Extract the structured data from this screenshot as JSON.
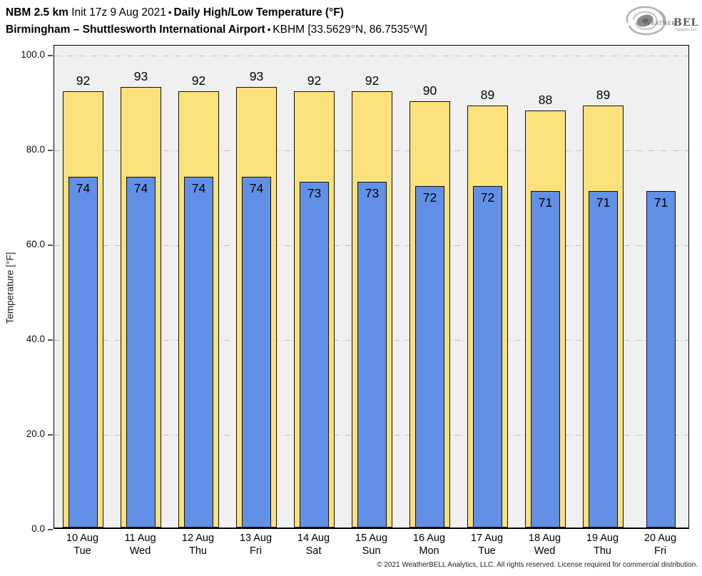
{
  "header": {
    "model": "NBM 2.5 km",
    "init": "Init 17z 9 Aug 2021",
    "sep": "•",
    "product": "Daily High/Low Temperature (°F)",
    "location": "Birmingham – Shuttlesworth International Airport",
    "station": "KBHM [33.5629°N, 86.7535°W]"
  },
  "logo": {
    "name": "WeatherBELL",
    "text_weather": "Weather",
    "text_bell": "BELL",
    "text_sub": "Analytics LLC"
  },
  "footer": {
    "copyright": "© 2021 WeatherBELL Analytics, LLC. All rights reserved. License required for commercial distribution."
  },
  "chart_data": {
    "type": "bar",
    "title": "NBM 2.5 km Init 17z 9 Aug 2021 • Daily High/Low Temperature (°F)",
    "subtitle": "Birmingham – Shuttlesworth International Airport • KBHM [33.5629°N, 86.7535°W]",
    "xlabel": "",
    "ylabel": "Temperature [°F]",
    "ylim": [
      0,
      100
    ],
    "yticks": [
      {
        "value": 0,
        "label": "0.0"
      },
      {
        "value": 20,
        "label": "20.0"
      },
      {
        "value": 40,
        "label": "40.0"
      },
      {
        "value": 60,
        "label": "60.0"
      },
      {
        "value": 80,
        "label": "80.0"
      },
      {
        "value": 100,
        "label": "100.0"
      }
    ],
    "grid": "horizontal dash-dot at 20-unit intervals",
    "legend_position": "none",
    "plot_background": "#f0f0f0",
    "categories": [
      {
        "date": "10 Aug",
        "day": "Tue"
      },
      {
        "date": "11 Aug",
        "day": "Wed"
      },
      {
        "date": "12 Aug",
        "day": "Thu"
      },
      {
        "date": "13 Aug",
        "day": "Fri"
      },
      {
        "date": "14 Aug",
        "day": "Sat"
      },
      {
        "date": "15 Aug",
        "day": "Sun"
      },
      {
        "date": "16 Aug",
        "day": "Mon"
      },
      {
        "date": "17 Aug",
        "day": "Tue"
      },
      {
        "date": "18 Aug",
        "day": "Wed"
      },
      {
        "date": "19 Aug",
        "day": "Thu"
      },
      {
        "date": "20 Aug",
        "day": "Fri"
      }
    ],
    "series": [
      {
        "name": "Daily High",
        "color": "#fbe17c",
        "border": "#111111",
        "values": [
          92,
          93,
          92,
          93,
          92,
          92,
          90,
          89,
          88,
          89,
          null
        ]
      },
      {
        "name": "Daily Low",
        "color": "#6190e6",
        "border": "#111111",
        "values": [
          74,
          74,
          74,
          74,
          73,
          73,
          72,
          72,
          71,
          71,
          71
        ]
      }
    ]
  },
  "colors": {
    "high_bar": "#fbe17c",
    "low_bar": "#6190e6",
    "bar_border": "#111111",
    "plot_bg": "#f0f0f0",
    "gridline": "#bdbdbd",
    "page_bg": "#ffffff",
    "logo_gray": "#9a9a9a"
  }
}
